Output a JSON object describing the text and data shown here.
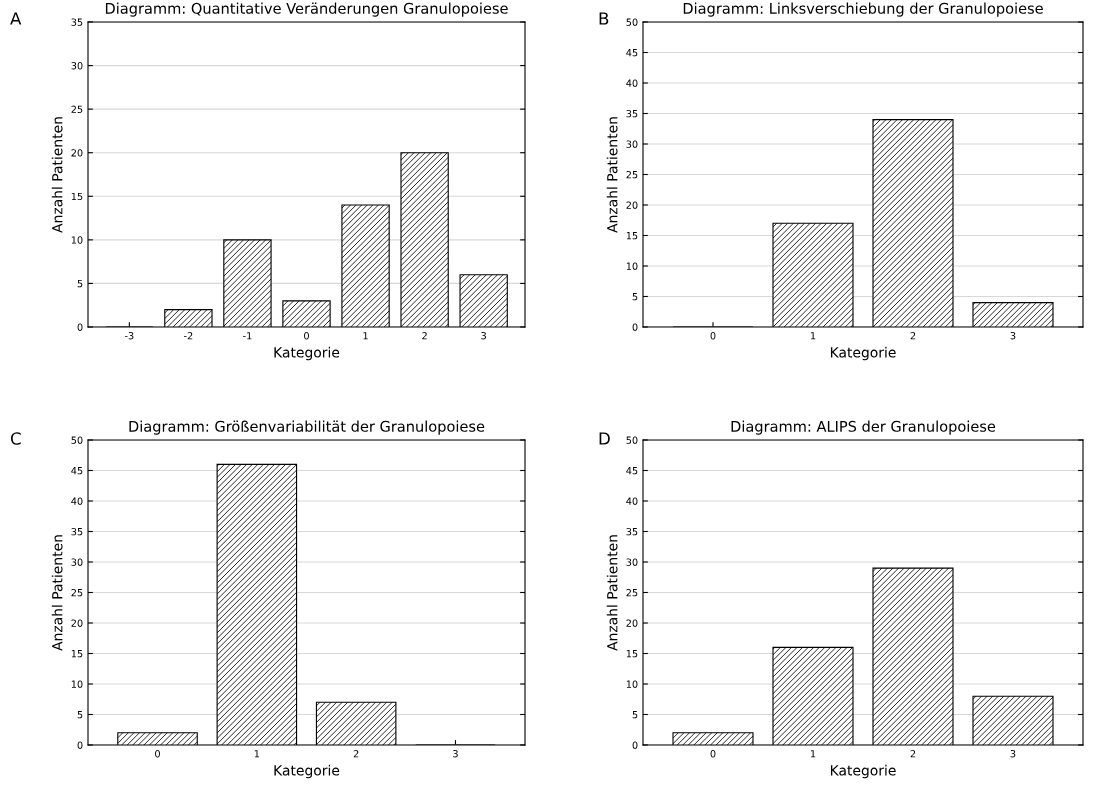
{
  "chart_data": [
    {
      "type": "bar",
      "title": "Diagramm: Quantitative Veränderungen Granulopoiese",
      "xlabel": "Kategorie",
      "ylabel": "Anzahl Patienten",
      "annotations": [
        "A"
      ],
      "categories": [
        "-3",
        "-2",
        "-1",
        "0",
        "1",
        "2",
        "3"
      ],
      "values": [
        0,
        2,
        10,
        3,
        14,
        20,
        6
      ],
      "color": "#000000",
      "ylim": [
        0,
        35
      ],
      "yticks": [
        0,
        5,
        10,
        15,
        20,
        25,
        30,
        35
      ],
      "grid": "y"
    },
    {
      "type": "bar",
      "title": "Diagramm: Linksverschiebung der Granulopoiese",
      "xlabel": "Kategorie",
      "ylabel": "Anzahl Patienten",
      "annotations": [
        "B"
      ],
      "categories": [
        "0",
        "1",
        "2",
        "3"
      ],
      "values": [
        0,
        17,
        34,
        4
      ],
      "color": "#000000",
      "ylim": [
        0,
        50
      ],
      "yticks": [
        0,
        5,
        10,
        15,
        20,
        25,
        30,
        35,
        40,
        45,
        50
      ],
      "grid": "y"
    },
    {
      "type": "bar",
      "title": "Diagramm: Größenvariabilität der Granulopoiese",
      "xlabel": "Kategorie",
      "ylabel": "Anzahl Patienten",
      "annotations": [
        "C"
      ],
      "categories": [
        "0",
        "1",
        "2",
        "3"
      ],
      "values": [
        2,
        46,
        7,
        0
      ],
      "color": "#000000",
      "ylim": [
        0,
        50
      ],
      "yticks": [
        0,
        5,
        10,
        15,
        20,
        25,
        30,
        35,
        40,
        45,
        50
      ],
      "grid": "y"
    },
    {
      "type": "bar",
      "title": "Diagramm: ALIPS der Granulopoiese",
      "xlabel": "Kategorie",
      "ylabel": "Anzahl Patienten",
      "annotations": [
        "D"
      ],
      "categories": [
        "0",
        "1",
        "2",
        "3"
      ],
      "values": [
        2,
        16,
        29,
        8
      ],
      "color": "#000000",
      "ylim": [
        0,
        50
      ],
      "yticks": [
        0,
        5,
        10,
        15,
        20,
        25,
        30,
        35,
        40,
        45,
        50
      ],
      "grid": "y"
    }
  ]
}
